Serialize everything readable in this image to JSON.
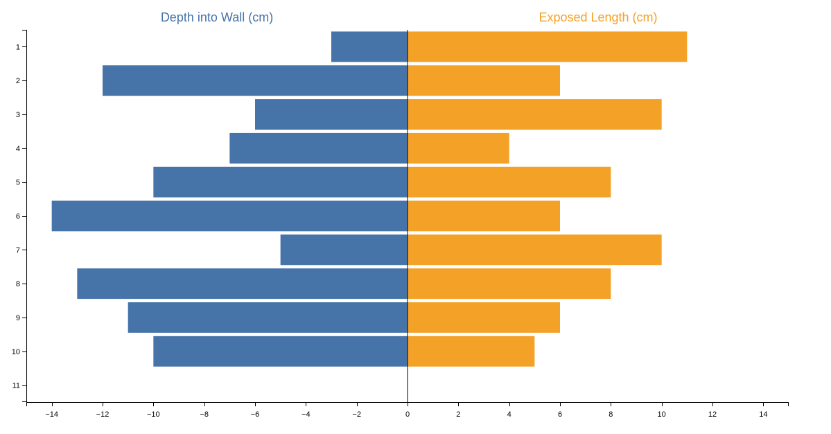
{
  "chart_data": {
    "type": "bar",
    "orientation": "horizontal",
    "layout": "diverging",
    "categories": [
      "1",
      "2",
      "3",
      "4",
      "5",
      "6",
      "7",
      "8",
      "9",
      "10"
    ],
    "y_ticks": [
      "1",
      "2",
      "3",
      "4",
      "5",
      "6",
      "7",
      "8",
      "9",
      "10",
      "11"
    ],
    "x_ticks": [
      -14,
      -12,
      -10,
      -8,
      -6,
      -4,
      -2,
      0,
      2,
      4,
      6,
      8,
      10,
      12,
      14
    ],
    "x_tick_labels": [
      "−14",
      "−12",
      "−10",
      "−8",
      "−6",
      "−4",
      "−2",
      "0",
      "2",
      "4",
      "6",
      "8",
      "10",
      "12",
      "14"
    ],
    "xlim": [
      -15,
      15
    ],
    "series": [
      {
        "name": "Depth into Wall (cm)",
        "color": "#4674a9",
        "values": [
          -3,
          -12,
          -6,
          -7,
          -10,
          -14,
          -5,
          -13,
          -11,
          -10
        ]
      },
      {
        "name": "Exposed Length (cm)",
        "color": "#f4a127",
        "values": [
          11,
          6,
          10,
          4,
          8,
          6,
          10,
          8,
          6,
          5
        ]
      }
    ],
    "grid": false,
    "legend": "top"
  }
}
